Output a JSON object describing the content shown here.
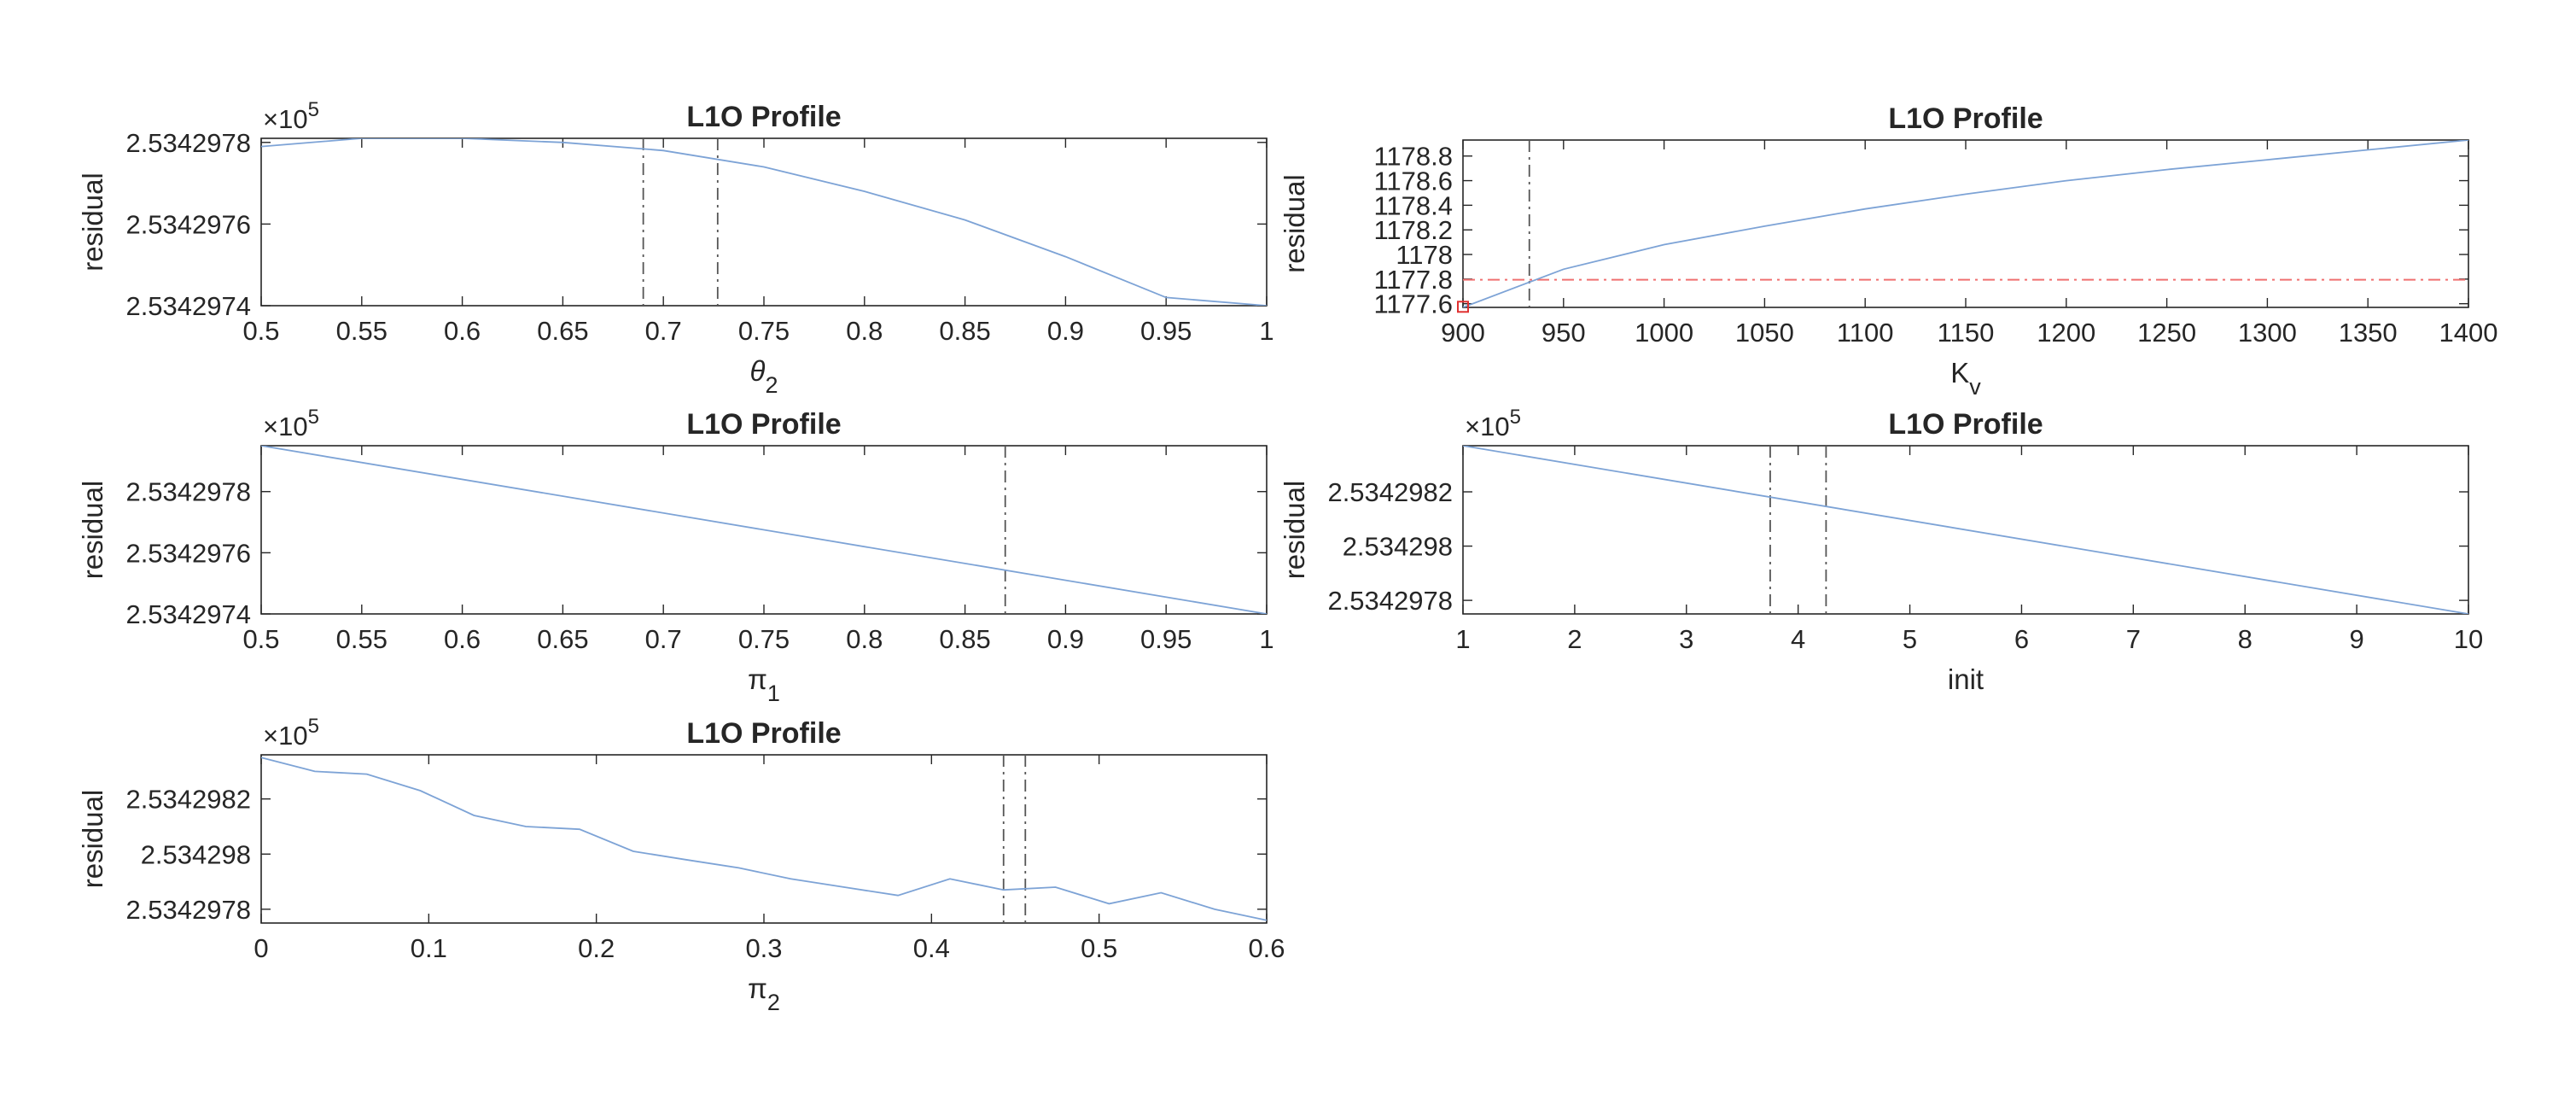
{
  "figure": {
    "background": "#ffffff"
  },
  "chart_data": [
    {
      "type": "line",
      "title": "L1O Profile",
      "xlabel": {
        "base": "θ",
        "sub": "2",
        "italic": true
      },
      "ylabel": "residual",
      "y_exponent": {
        "base": "×10",
        "power": "5"
      },
      "xlim": [
        0.5,
        1
      ],
      "ylim": [
        2.5342974,
        2.53429781
      ],
      "xticks": [
        0.5,
        0.55,
        0.6,
        0.65,
        0.7,
        0.75,
        0.8,
        0.85,
        0.9,
        0.95,
        1
      ],
      "xtick_labels": [
        "0.5",
        "0.55",
        "0.6",
        "0.65",
        "0.7",
        "0.75",
        "0.8",
        "0.85",
        "0.9",
        "0.95",
        "1"
      ],
      "yticks": [
        2.5342974,
        2.5342976,
        2.5342978
      ],
      "ytick_labels": [
        "2.5342974",
        "2.5342976",
        "2.5342978"
      ],
      "series": [
        {
          "color": "#7da3d6",
          "x": [
            0.5,
            0.55,
            0.6,
            0.65,
            0.7,
            0.75,
            0.8,
            0.85,
            0.9,
            0.95,
            1
          ],
          "y": [
            2.53429779,
            2.53429781,
            2.53429781,
            2.5342978,
            2.53429778,
            2.53429774,
            2.53429768,
            2.53429761,
            2.53429752,
            2.53429742,
            2.5342974
          ]
        }
      ],
      "vlines": [
        0.69,
        0.727
      ],
      "vline_color": "#555555",
      "grid": false
    },
    {
      "type": "line",
      "title": "L1O Profile",
      "xlabel": {
        "base": "K",
        "sub": "v",
        "italic": false
      },
      "ylabel": "residual",
      "xlim": [
        900,
        1400
      ],
      "ylim": [
        1177.57,
        1178.93
      ],
      "xticks": [
        900,
        950,
        1000,
        1050,
        1100,
        1150,
        1200,
        1250,
        1300,
        1350,
        1400
      ],
      "xtick_labels": [
        "900",
        "950",
        "1000",
        "1050",
        "1100",
        "1150",
        "1200",
        "1250",
        "1300",
        "1350",
        "1400"
      ],
      "yticks": [
        1177.6,
        1177.8,
        1178,
        1178.2,
        1178.4,
        1178.6,
        1178.8
      ],
      "ytick_labels": [
        "1177.6",
        "1177.8",
        "1178",
        "1178.2",
        "1178.4",
        "1178.6",
        "1178.8"
      ],
      "series": [
        {
          "color": "#7da3d6",
          "x": [
            900,
            950,
            1000,
            1050,
            1100,
            1150,
            1200,
            1250,
            1300,
            1350,
            1400
          ],
          "y": [
            1177.57,
            1177.88,
            1178.08,
            1178.23,
            1178.37,
            1178.49,
            1178.6,
            1178.69,
            1178.77,
            1178.85,
            1178.93
          ]
        }
      ],
      "vlines": [
        933
      ],
      "vline_color": "#555555",
      "hline": 1177.795,
      "hline_color": "#f07070",
      "marker": {
        "x": 900,
        "y": 1177.575,
        "color": "#e03030",
        "shape": "square"
      },
      "grid": false
    },
    {
      "type": "line",
      "title": "L1O Profile",
      "xlabel": {
        "base": "π",
        "sub": "1",
        "italic": false
      },
      "ylabel": "residual",
      "y_exponent": {
        "base": "×10",
        "power": "5"
      },
      "xlim": [
        0.5,
        1
      ],
      "ylim": [
        2.5342974,
        2.53429795
      ],
      "xticks": [
        0.5,
        0.55,
        0.6,
        0.65,
        0.7,
        0.75,
        0.8,
        0.85,
        0.9,
        0.95,
        1
      ],
      "xtick_labels": [
        "0.5",
        "0.55",
        "0.6",
        "0.65",
        "0.7",
        "0.75",
        "0.8",
        "0.85",
        "0.9",
        "0.95",
        "1"
      ],
      "yticks": [
        2.5342974,
        2.5342976,
        2.5342978
      ],
      "ytick_labels": [
        "2.5342974",
        "2.5342976",
        "2.5342978"
      ],
      "series": [
        {
          "color": "#7da3d6",
          "x": [
            0.5,
            1
          ],
          "y": [
            2.53429795,
            2.5342974
          ]
        }
      ],
      "vlines": [
        0.87
      ],
      "vline_color": "#555555",
      "grid": false
    },
    {
      "type": "line",
      "title": "L1O Profile",
      "xlabel": {
        "base": "init",
        "sub": "",
        "italic": false
      },
      "ylabel": "residual",
      "y_exponent": {
        "base": "×10",
        "power": "5"
      },
      "xlim": [
        1,
        10
      ],
      "ylim": [
        2.53429775,
        2.53429837
      ],
      "xticks": [
        1,
        2,
        3,
        4,
        5,
        6,
        7,
        8,
        9,
        10
      ],
      "xtick_labels": [
        "1",
        "2",
        "3",
        "4",
        "5",
        "6",
        "7",
        "8",
        "9",
        "10"
      ],
      "yticks": [
        2.5342978,
        2.534298,
        2.5342982
      ],
      "ytick_labels": [
        "2.5342978",
        "2.534298",
        "2.5342982"
      ],
      "series": [
        {
          "color": "#7da3d6",
          "x": [
            1,
            10
          ],
          "y": [
            2.53429837,
            2.53429775
          ]
        }
      ],
      "vlines": [
        3.75,
        4.25
      ],
      "vline_color": "#555555",
      "grid": false
    },
    {
      "type": "line",
      "title": "L1O Profile",
      "xlabel": {
        "base": "π",
        "sub": "2",
        "italic": false
      },
      "ylabel": "residual",
      "y_exponent": {
        "base": "×10",
        "power": "5"
      },
      "xlim": [
        0,
        0.6
      ],
      "ylim": [
        2.53429775,
        2.53429836
      ],
      "xticks": [
        0,
        0.1,
        0.2,
        0.3,
        0.4,
        0.5,
        0.6
      ],
      "xtick_labels": [
        "0",
        "0.1",
        "0.2",
        "0.3",
        "0.4",
        "0.5",
        "0.6"
      ],
      "yticks": [
        2.5342978,
        2.534298,
        2.5342982
      ],
      "ytick_labels": [
        "2.5342978",
        "2.534298",
        "2.5342982"
      ],
      "series": [
        {
          "color": "#7da3d6",
          "x": [
            0,
            0.032,
            0.063,
            0.095,
            0.127,
            0.158,
            0.19,
            0.222,
            0.253,
            0.285,
            0.316,
            0.348,
            0.38,
            0.411,
            0.443,
            0.474,
            0.506,
            0.537,
            0.569,
            0.6
          ],
          "y": [
            2.53429835,
            2.5342983,
            2.53429829,
            2.53429823,
            2.53429814,
            2.5342981,
            2.53429809,
            2.53429801,
            2.53429798,
            2.53429795,
            2.53429791,
            2.53429788,
            2.53429785,
            2.53429791,
            2.53429787,
            2.53429788,
            2.53429782,
            2.53429786,
            2.5342978,
            2.53429776
          ]
        }
      ],
      "vlines": [
        0.443,
        0.456
      ],
      "vline_color": "#555555",
      "grid": false
    }
  ]
}
